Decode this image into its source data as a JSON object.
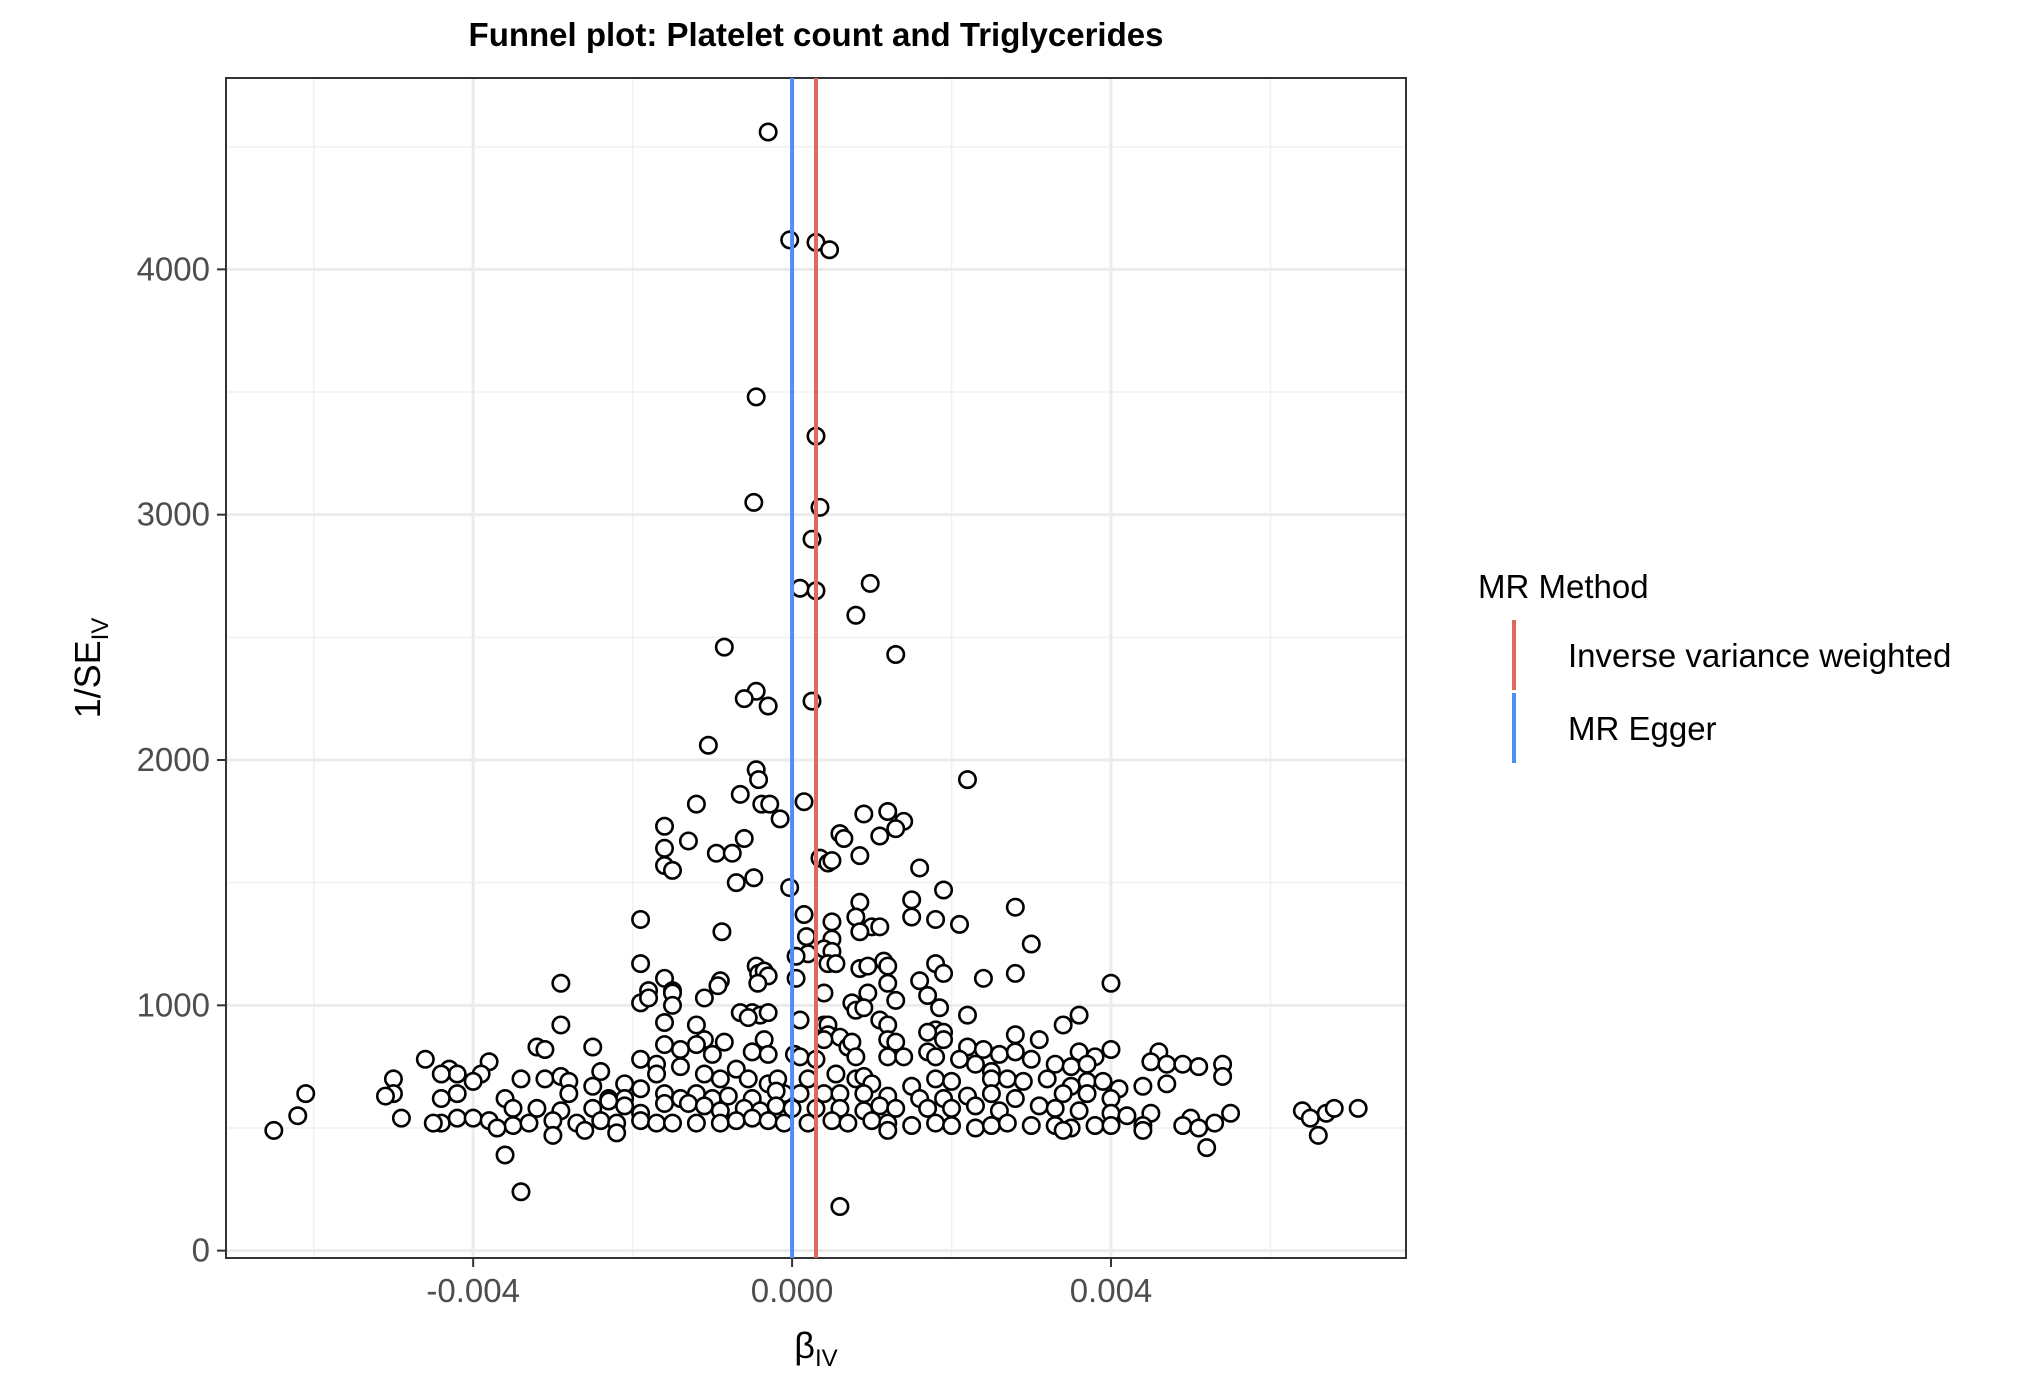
{
  "chart_data": {
    "type": "scatter",
    "title": "Funnel plot: Platelet count and Triglycerides",
    "xlabel": "β",
    "xlabel_sub": "IV",
    "ylabel": "1/SE",
    "ylabel_sub": "IV",
    "xlim": [
      -0.0071,
      0.0077
    ],
    "ylim": [
      -30,
      4780
    ],
    "x_ticks": [
      -0.004,
      0.0,
      0.004
    ],
    "x_tick_labels": [
      "-0.004",
      "0.000",
      "0.004"
    ],
    "y_ticks": [
      0,
      1000,
      2000,
      3000,
      4000
    ],
    "y_tick_labels": [
      "0",
      "1000",
      "2000",
      "3000",
      "4000"
    ],
    "grid": true,
    "legend": {
      "title": "MR Method",
      "placement": "right",
      "entries": [
        {
          "label": "Inverse variance weighted",
          "color": "#e0695f"
        },
        {
          "label": "MR Egger",
          "color": "#4f8ff5"
        }
      ]
    },
    "lines": [
      {
        "method": "Inverse variance weighted",
        "x": 0.0003,
        "color": "#e0695f"
      },
      {
        "method": "MR Egger",
        "x": 0.0,
        "color": "#4f8ff5"
      }
    ],
    "points": [
      [
        -0.0003,
        4560
      ],
      [
        -3e-05,
        4120
      ],
      [
        0.0003,
        4110
      ],
      [
        0.00047,
        4080
      ],
      [
        -0.00045,
        3480
      ],
      [
        0.0003,
        3320
      ],
      [
        -0.00048,
        3050
      ],
      [
        0.00035,
        3030
      ],
      [
        0.00025,
        2900
      ],
      [
        0.0001,
        2700
      ],
      [
        0.0003,
        2690
      ],
      [
        0.00098,
        2720
      ],
      [
        0.0008,
        2590
      ],
      [
        -0.00085,
        2460
      ],
      [
        0.0013,
        2430
      ],
      [
        -0.00045,
        2280
      ],
      [
        -0.0006,
        2250
      ],
      [
        -0.0003,
        2220
      ],
      [
        0.00025,
        2240
      ],
      [
        -0.00105,
        2060
      ],
      [
        0.0022,
        1920
      ],
      [
        -0.00045,
        1960
      ],
      [
        -0.00042,
        1920
      ],
      [
        -0.00065,
        1860
      ],
      [
        -0.00038,
        1820
      ],
      [
        -0.00028,
        1820
      ],
      [
        0.00015,
        1830
      ],
      [
        -0.00015,
        1760
      ],
      [
        -0.0012,
        1820
      ],
      [
        0.0009,
        1780
      ],
      [
        0.0012,
        1790
      ],
      [
        0.0014,
        1750
      ],
      [
        -0.0016,
        1730
      ],
      [
        -0.0016,
        1640
      ],
      [
        -0.0013,
        1670
      ],
      [
        -0.0006,
        1680
      ],
      [
        0.0006,
        1700
      ],
      [
        0.00065,
        1680
      ],
      [
        0.0011,
        1690
      ],
      [
        0.0013,
        1720
      ],
      [
        -0.00095,
        1620
      ],
      [
        -0.00075,
        1620
      ],
      [
        0.00035,
        1600
      ],
      [
        0.00045,
        1580
      ],
      [
        0.0005,
        1590
      ],
      [
        0.00085,
        1610
      ],
      [
        -0.0016,
        1570
      ],
      [
        -0.0015,
        1550
      ],
      [
        -0.00048,
        1520
      ],
      [
        -0.0007,
        1500
      ],
      [
        0.0016,
        1560
      ],
      [
        -3e-05,
        1480
      ],
      [
        0.0019,
        1470
      ],
      [
        0.0015,
        1430
      ],
      [
        0.00085,
        1420
      ],
      [
        0.0028,
        1400
      ],
      [
        -0.0019,
        1350
      ],
      [
        0.00015,
        1370
      ],
      [
        0.0005,
        1340
      ],
      [
        0.0008,
        1360
      ],
      [
        0.0015,
        1360
      ],
      [
        0.0018,
        1350
      ],
      [
        0.0021,
        1330
      ],
      [
        0.001,
        1320
      ],
      [
        0.0011,
        1320
      ],
      [
        0.00085,
        1300
      ],
      [
        -0.00088,
        1300
      ],
      [
        0.00018,
        1280
      ],
      [
        0.0005,
        1270
      ],
      [
        0.003,
        1250
      ],
      [
        0.0002,
        1210
      ],
      [
        0.0004,
        1230
      ],
      [
        0.0005,
        1220
      ],
      [
        -0.0009,
        1100
      ],
      [
        5e-05,
        1200
      ],
      [
        0.00045,
        1170
      ],
      [
        0.00055,
        1170
      ],
      [
        0.00115,
        1180
      ],
      [
        0.00085,
        1150
      ],
      [
        0.0012,
        1160
      ],
      [
        0.00095,
        1160
      ],
      [
        0.0018,
        1170
      ],
      [
        0.0019,
        1130
      ],
      [
        -0.0019,
        1170
      ],
      [
        -0.0018,
        1060
      ],
      [
        -0.0016,
        1110
      ],
      [
        -0.0015,
        1060
      ],
      [
        -0.0015,
        1050
      ],
      [
        -0.00045,
        1160
      ],
      [
        -0.00042,
        1130
      ],
      [
        -0.00035,
        1140
      ],
      [
        -0.0003,
        1120
      ],
      [
        -0.00043,
        1090
      ],
      [
        5e-05,
        1110
      ],
      [
        0.0028,
        1130
      ],
      [
        0.0024,
        1110
      ],
      [
        0.004,
        1090
      ],
      [
        -0.0029,
        1090
      ],
      [
        0.00095,
        1050
      ],
      [
        0.0012,
        1090
      ],
      [
        0.0016,
        1100
      ],
      [
        0.0017,
        1040
      ],
      [
        -0.00093,
        1080
      ],
      [
        -0.0011,
        1030
      ],
      [
        -0.0019,
        1010
      ],
      [
        -0.0018,
        1030
      ],
      [
        -0.0015,
        1000
      ],
      [
        0.0004,
        1050
      ],
      [
        0.00075,
        1010
      ],
      [
        0.0008,
        980
      ],
      [
        0.0009,
        990
      ],
      [
        0.0013,
        1020
      ],
      [
        0.00185,
        990
      ],
      [
        0.0022,
        960
      ],
      [
        0.0036,
        960
      ],
      [
        0.0034,
        920
      ],
      [
        -0.0029,
        920
      ],
      [
        -0.0012,
        920
      ],
      [
        -0.0016,
        930
      ],
      [
        -0.0005,
        970
      ],
      [
        -0.0004,
        960
      ],
      [
        -0.0003,
        970
      ],
      [
        -0.00065,
        970
      ],
      [
        -0.00055,
        950
      ],
      [
        0.0001,
        940
      ],
      [
        0.0004,
        920
      ],
      [
        0.00045,
        920
      ],
      [
        0.0011,
        940
      ],
      [
        0.0012,
        920
      ],
      [
        0.0018,
        900
      ],
      [
        0.0019,
        890
      ],
      [
        0.0017,
        890
      ],
      [
        0.00045,
        880
      ],
      [
        0.0006,
        870
      ],
      [
        0.0007,
        830
      ],
      [
        0.0028,
        880
      ],
      [
        0.0031,
        860
      ],
      [
        0.0036,
        810
      ],
      [
        0.0038,
        790
      ],
      [
        0.004,
        820
      ],
      [
        0.0046,
        810
      ],
      [
        0.0045,
        770
      ],
      [
        -0.00085,
        850
      ],
      [
        -0.0011,
        860
      ],
      [
        -0.0014,
        820
      ],
      [
        -0.0016,
        840
      ],
      [
        -0.0012,
        840
      ],
      [
        -0.00035,
        860
      ],
      [
        0.0004,
        860
      ],
      [
        0.00075,
        850
      ],
      [
        0.0012,
        860
      ],
      [
        0.0013,
        850
      ],
      [
        0.0019,
        860
      ],
      [
        0.0022,
        830
      ],
      [
        0.0024,
        820
      ],
      [
        0.0026,
        800
      ],
      [
        0.0028,
        810
      ],
      [
        -0.0032,
        830
      ],
      [
        -0.0031,
        820
      ],
      [
        -0.0025,
        830
      ],
      [
        -0.0019,
        780
      ],
      [
        -0.0017,
        760
      ],
      [
        -0.001,
        800
      ],
      [
        -0.0005,
        810
      ],
      [
        -0.0003,
        800
      ],
      [
        3e-05,
        800
      ],
      [
        0.0001,
        790
      ],
      [
        0.0003,
        780
      ],
      [
        0.0008,
        790
      ],
      [
        0.0012,
        790
      ],
      [
        0.0014,
        790
      ],
      [
        0.0017,
        810
      ],
      [
        0.0018,
        790
      ],
      [
        0.0021,
        780
      ],
      [
        0.0023,
        760
      ],
      [
        0.0025,
        730
      ],
      [
        0.003,
        780
      ],
      [
        0.0033,
        760
      ],
      [
        0.0035,
        750
      ],
      [
        0.0037,
        760
      ],
      [
        0.0047,
        760
      ],
      [
        0.0049,
        760
      ],
      [
        0.0051,
        750
      ],
      [
        0.0054,
        760
      ],
      [
        0.0054,
        710
      ],
      [
        -0.0046,
        780
      ],
      [
        -0.0043,
        740
      ],
      [
        -0.0042,
        720
      ],
      [
        -0.0038,
        770
      ],
      [
        -0.005,
        700
      ],
      [
        -0.0044,
        720
      ],
      [
        -0.0039,
        720
      ],
      [
        -0.0034,
        700
      ],
      [
        -0.0031,
        700
      ],
      [
        -0.0029,
        710
      ],
      [
        -0.0028,
        690
      ],
      [
        -0.0024,
        730
      ],
      [
        -0.0021,
        680
      ],
      [
        -0.0017,
        720
      ],
      [
        -0.0014,
        750
      ],
      [
        -0.0011,
        720
      ],
      [
        -0.0009,
        700
      ],
      [
        -0.0007,
        740
      ],
      [
        -0.00055,
        700
      ],
      [
        -0.0003,
        680
      ],
      [
        -0.00018,
        700
      ],
      [
        -0.0001,
        640
      ],
      [
        0.0002,
        700
      ],
      [
        0.00055,
        720
      ],
      [
        0.0008,
        700
      ],
      [
        0.0009,
        710
      ],
      [
        0.001,
        680
      ],
      [
        0.0015,
        670
      ],
      [
        0.0018,
        700
      ],
      [
        0.002,
        690
      ],
      [
        0.0025,
        700
      ],
      [
        0.0027,
        700
      ],
      [
        0.0029,
        690
      ],
      [
        0.0032,
        700
      ],
      [
        0.0035,
        670
      ],
      [
        0.0037,
        690
      ],
      [
        0.0039,
        690
      ],
      [
        0.0041,
        660
      ],
      [
        0.0044,
        670
      ],
      [
        0.0047,
        680
      ],
      [
        -0.004,
        690
      ],
      [
        -0.0042,
        640
      ],
      [
        -0.0044,
        620
      ],
      [
        -0.005,
        640
      ],
      [
        -0.0036,
        620
      ],
      [
        -0.0028,
        640
      ],
      [
        -0.0025,
        670
      ],
      [
        -0.0023,
        620
      ],
      [
        -0.0021,
        620
      ],
      [
        -0.0019,
        660
      ],
      [
        -0.0016,
        640
      ],
      [
        -0.0014,
        620
      ],
      [
        -0.0012,
        640
      ],
      [
        -0.001,
        620
      ],
      [
        -0.0008,
        630
      ],
      [
        -0.0005,
        620
      ],
      [
        -0.0002,
        650
      ],
      [
        0.0001,
        640
      ],
      [
        0.0004,
        640
      ],
      [
        0.0006,
        640
      ],
      [
        0.0009,
        640
      ],
      [
        0.0012,
        630
      ],
      [
        0.0016,
        620
      ],
      [
        0.0019,
        620
      ],
      [
        0.0022,
        630
      ],
      [
        0.0025,
        640
      ],
      [
        0.0028,
        620
      ],
      [
        0.0034,
        640
      ],
      [
        0.0037,
        640
      ],
      [
        0.004,
        620
      ],
      [
        -0.0061,
        640
      ],
      [
        -0.0051,
        630
      ],
      [
        -0.0035,
        580
      ],
      [
        -0.0032,
        580
      ],
      [
        -0.0029,
        570
      ],
      [
        -0.0025,
        580
      ],
      [
        -0.0023,
        610
      ],
      [
        -0.0021,
        590
      ],
      [
        -0.0019,
        560
      ],
      [
        -0.0016,
        600
      ],
      [
        -0.0013,
        600
      ],
      [
        -0.0011,
        590
      ],
      [
        -0.0009,
        570
      ],
      [
        -0.0006,
        580
      ],
      [
        -0.0004,
        570
      ],
      [
        -0.0002,
        590
      ],
      [
        0.0,
        580
      ],
      [
        0.0003,
        580
      ],
      [
        0.0006,
        580
      ],
      [
        0.0009,
        570
      ],
      [
        0.0011,
        590
      ],
      [
        0.0013,
        580
      ],
      [
        0.0017,
        580
      ],
      [
        0.002,
        580
      ],
      [
        0.0023,
        590
      ],
      [
        0.0026,
        570
      ],
      [
        0.0031,
        590
      ],
      [
        0.0033,
        580
      ],
      [
        0.0036,
        570
      ],
      [
        0.004,
        560
      ],
      [
        0.0042,
        550
      ],
      [
        0.0045,
        560
      ],
      [
        0.005,
        540
      ],
      [
        0.0055,
        560
      ],
      [
        0.0064,
        570
      ],
      [
        0.0067,
        560
      ],
      [
        0.0068,
        580
      ],
      [
        0.0071,
        580
      ],
      [
        -0.0062,
        550
      ],
      [
        -0.0049,
        540
      ],
      [
        -0.0044,
        520
      ],
      [
        -0.0042,
        540
      ],
      [
        -0.004,
        540
      ],
      [
        -0.0038,
        530
      ],
      [
        -0.0035,
        510
      ],
      [
        -0.0033,
        520
      ],
      [
        -0.003,
        530
      ],
      [
        -0.0027,
        520
      ],
      [
        -0.0024,
        530
      ],
      [
        -0.0022,
        520
      ],
      [
        -0.0019,
        530
      ],
      [
        -0.0017,
        520
      ],
      [
        -0.0015,
        520
      ],
      [
        -0.0012,
        520
      ],
      [
        -0.0009,
        520
      ],
      [
        -0.0007,
        530
      ],
      [
        -0.0005,
        540
      ],
      [
        -0.0003,
        530
      ],
      [
        -0.0001,
        520
      ],
      [
        0.0002,
        520
      ],
      [
        0.0005,
        530
      ],
      [
        0.0007,
        520
      ],
      [
        0.001,
        530
      ],
      [
        0.0012,
        520
      ],
      [
        0.0015,
        510
      ],
      [
        0.0018,
        520
      ],
      [
        0.002,
        510
      ],
      [
        0.0023,
        500
      ],
      [
        0.0025,
        510
      ],
      [
        0.0027,
        520
      ],
      [
        0.003,
        510
      ],
      [
        0.0033,
        510
      ],
      [
        0.0035,
        500
      ],
      [
        0.0038,
        510
      ],
      [
        0.004,
        510
      ],
      [
        0.0044,
        510
      ],
      [
        0.0049,
        510
      ],
      [
        0.0053,
        520
      ],
      [
        0.0065,
        540
      ],
      [
        0.0066,
        470
      ],
      [
        -0.0065,
        490
      ],
      [
        -0.0045,
        520
      ],
      [
        -0.0037,
        500
      ],
      [
        -0.003,
        470
      ],
      [
        -0.0026,
        490
      ],
      [
        -0.0022,
        480
      ],
      [
        0.0012,
        490
      ],
      [
        0.0034,
        490
      ],
      [
        0.0044,
        490
      ],
      [
        0.0051,
        500
      ],
      [
        0.0052,
        420
      ],
      [
        -0.0036,
        390
      ],
      [
        -0.0034,
        240
      ],
      [
        0.0006,
        180
      ]
    ]
  }
}
